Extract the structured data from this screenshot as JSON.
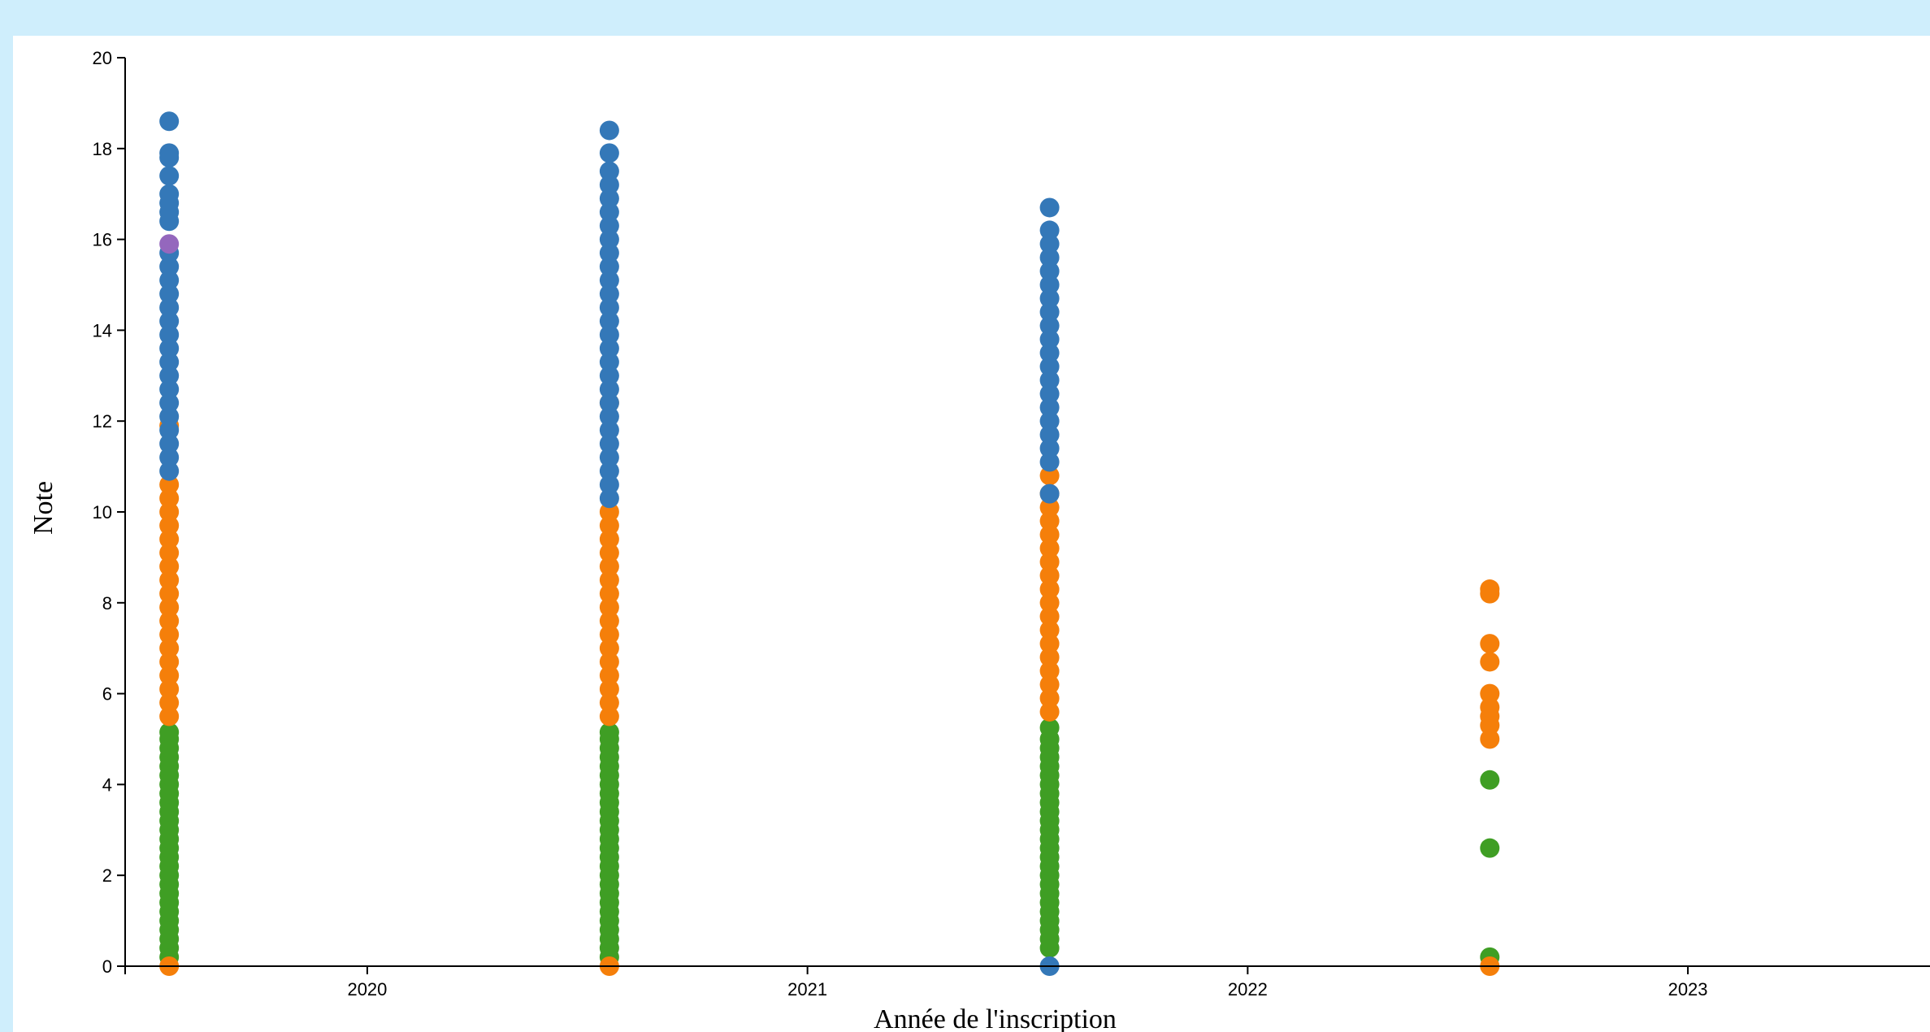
{
  "chart_data": {
    "type": "scatter",
    "title": "",
    "xlabel": "Année de l'inscription",
    "ylabel": "Note",
    "x_ticks": [
      "2020",
      "2021",
      "2022",
      "2023"
    ],
    "xlim": [
      2019.45,
      2023.55
    ],
    "y_ticks": [
      0,
      2,
      4,
      6,
      8,
      10,
      12,
      14,
      16,
      18,
      20
    ],
    "ylim": [
      0,
      20
    ],
    "grid": false,
    "legend": "none",
    "colors": {
      "blue": "#3478b8",
      "orange": "#f57f0a",
      "green": "#3f9e24",
      "purple": "#9467bd"
    },
    "series": [
      {
        "color": "#3f9e24",
        "points": [
          {
            "x": 2019.55,
            "y": [
              0.2,
              0.4,
              0.6,
              0.8,
              1.0,
              1.2,
              1.4,
              1.6,
              1.8,
              2.0,
              2.2,
              2.4,
              2.6,
              2.8,
              3.0,
              3.2,
              3.4,
              3.6,
              3.8,
              4.0,
              4.2,
              4.4,
              4.6,
              4.8,
              5.0,
              5.15
            ]
          },
          {
            "x": 2020.55,
            "y": [
              0.2,
              0.4,
              0.6,
              0.8,
              1.0,
              1.2,
              1.4,
              1.6,
              1.8,
              2.0,
              2.2,
              2.4,
              2.6,
              2.8,
              3.0,
              3.2,
              3.4,
              3.6,
              3.8,
              4.0,
              4.2,
              4.4,
              4.6,
              4.8,
              5.0,
              5.15
            ]
          },
          {
            "x": 2021.55,
            "y": [
              0.4,
              0.6,
              0.8,
              1.0,
              1.2,
              1.4,
              1.6,
              1.8,
              2.0,
              2.2,
              2.4,
              2.6,
              2.8,
              3.0,
              3.2,
              3.4,
              3.6,
              3.8,
              4.0,
              4.2,
              4.4,
              4.6,
              4.8,
              5.0,
              5.25
            ]
          },
          {
            "x": 2022.55,
            "y": [
              0.2,
              2.6,
              4.1
            ]
          }
        ]
      },
      {
        "color": "#f57f0a",
        "points": [
          {
            "x": 2019.55,
            "y": [
              0.0,
              5.5,
              5.8,
              6.1,
              6.4,
              6.7,
              7.0,
              7.3,
              7.6,
              7.9,
              8.2,
              8.5,
              8.8,
              9.1,
              9.4,
              9.7,
              10.0,
              10.3,
              10.6,
              11.9
            ]
          },
          {
            "x": 2020.55,
            "y": [
              0.0,
              5.5,
              5.8,
              6.1,
              6.4,
              6.7,
              7.0,
              7.3,
              7.6,
              7.9,
              8.2,
              8.5,
              8.8,
              9.1,
              9.4,
              9.7,
              10.0,
              12.4
            ]
          },
          {
            "x": 2021.55,
            "y": [
              5.6,
              5.9,
              6.2,
              6.5,
              6.8,
              7.1,
              7.4,
              7.7,
              8.0,
              8.3,
              8.6,
              8.9,
              9.2,
              9.5,
              9.8,
              10.1,
              10.4,
              10.8
            ]
          },
          {
            "x": 2022.55,
            "y": [
              0.0,
              5.0,
              5.3,
              5.5,
              5.7,
              6.0,
              6.7,
              7.1,
              8.2,
              8.3
            ]
          }
        ]
      },
      {
        "color": "#3478b8",
        "points": [
          {
            "x": 2019.55,
            "y": [
              10.9,
              11.2,
              11.5,
              11.8,
              12.1,
              12.4,
              12.7,
              13.0,
              13.3,
              13.6,
              13.9,
              14.2,
              14.5,
              14.8,
              15.1,
              15.4,
              15.7,
              16.4,
              16.6,
              16.8,
              17.0,
              17.4,
              17.8,
              17.9,
              18.6
            ]
          },
          {
            "x": 2020.55,
            "y": [
              10.3,
              10.6,
              10.9,
              11.2,
              11.5,
              11.8,
              12.1,
              12.4,
              12.7,
              13.0,
              13.3,
              13.6,
              13.9,
              14.2,
              14.5,
              14.8,
              15.1,
              15.4,
              15.7,
              16.0,
              16.3,
              16.6,
              16.9,
              17.2,
              17.5,
              17.9,
              18.4
            ]
          },
          {
            "x": 2021.55,
            "y": [
              0.0,
              10.4,
              11.1,
              11.4,
              11.7,
              12.0,
              12.3,
              12.6,
              12.9,
              13.2,
              13.5,
              13.8,
              14.1,
              14.4,
              14.7,
              15.0,
              15.3,
              15.6,
              15.9,
              16.2,
              16.7
            ]
          }
        ]
      },
      {
        "color": "#9467bd",
        "points": [
          {
            "x": 2019.55,
            "y": [
              15.9
            ]
          }
        ]
      }
    ]
  }
}
